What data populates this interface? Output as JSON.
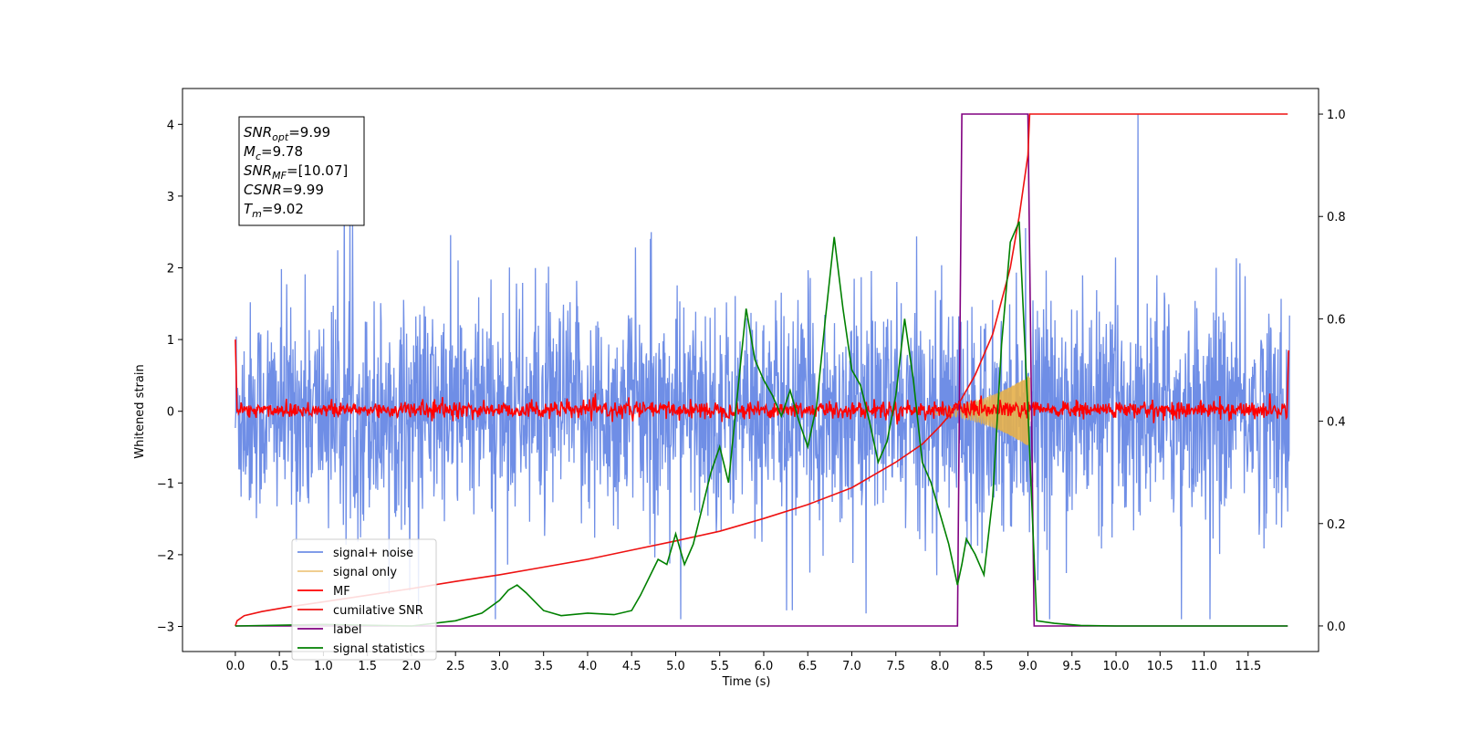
{
  "chart_data": {
    "type": "line",
    "xlabel": "Time (s)",
    "ylabel": "Whitened strain",
    "xlim": [
      -0.6,
      12.3
    ],
    "ylim": [
      -3.35,
      4.5
    ],
    "y2lim": [
      -0.05,
      1.05
    ],
    "x_ticks": [
      "0.0",
      "0.5",
      "1.0",
      "1.5",
      "2.0",
      "2.5",
      "3.0",
      "3.5",
      "4.0",
      "4.5",
      "5.0",
      "5.5",
      "6.0",
      "6.5",
      "7.0",
      "7.5",
      "8.0",
      "8.5",
      "9.0",
      "9.5",
      "10.0",
      "10.5",
      "11.0",
      "11.5"
    ],
    "y_ticks": [
      "4",
      "3",
      "2",
      "1",
      "0",
      "−1",
      "−2",
      "−3"
    ],
    "y2_ticks": [
      "1.0",
      "0.8",
      "0.6",
      "0.4",
      "0.2",
      "0.0"
    ],
    "colors": {
      "signal_noise": "#6f8ee6",
      "signal_only": "#e6b04a",
      "mf": "#ff0000",
      "cumulative_snr": "#ee1111",
      "label": "#800080",
      "signal_statistics": "#008000"
    },
    "info_box": [
      {
        "base": "SNR",
        "sub": "opt",
        "rest": "=9.99"
      },
      {
        "base": "M",
        "sub": "c",
        "rest": "=9.78"
      },
      {
        "base": "SNR",
        "sub": "MF",
        "rest": "=[10.07]"
      },
      {
        "base": "CSNR",
        "sub": "",
        "rest": "=9.99"
      },
      {
        "base": "T",
        "sub": "m",
        "rest": "=9.02"
      }
    ],
    "legend": [
      "signal+ noise",
      "signal only",
      "MF",
      "cumilative SNR",
      "label",
      "signal statistics"
    ],
    "series": [
      {
        "name": "label",
        "axis": "right",
        "x": [
          0.0,
          8.2,
          8.25,
          9.0,
          9.07,
          11.95
        ],
        "y": [
          0.0,
          0.0,
          1.0,
          1.0,
          0.0,
          0.0
        ]
      },
      {
        "name": "cumilative SNR",
        "axis": "right",
        "x": [
          0.0,
          0.02,
          0.1,
          0.3,
          0.6,
          1.0,
          1.5,
          2.0,
          2.5,
          3.0,
          3.5,
          4.0,
          4.5,
          5.0,
          5.5,
          6.0,
          6.5,
          7.0,
          7.5,
          7.8,
          8.0,
          8.2,
          8.4,
          8.6,
          8.8,
          8.9,
          9.0,
          9.02,
          11.95
        ],
        "y": [
          0.0,
          0.01,
          0.02,
          0.028,
          0.037,
          0.047,
          0.06,
          0.073,
          0.087,
          0.1,
          0.115,
          0.13,
          0.148,
          0.166,
          0.185,
          0.21,
          0.237,
          0.27,
          0.32,
          0.355,
          0.39,
          0.43,
          0.49,
          0.57,
          0.7,
          0.8,
          0.92,
          1.0,
          1.0
        ]
      },
      {
        "name": "signal statistics",
        "axis": "right",
        "x": [
          0.0,
          1.0,
          2.0,
          2.5,
          2.8,
          3.0,
          3.1,
          3.2,
          3.3,
          3.5,
          3.7,
          4.0,
          4.3,
          4.5,
          4.6,
          4.8,
          4.9,
          5.0,
          5.1,
          5.2,
          5.4,
          5.5,
          5.6,
          5.7,
          5.8,
          5.9,
          6.0,
          6.1,
          6.2,
          6.3,
          6.4,
          6.5,
          6.6,
          6.7,
          6.8,
          6.9,
          7.0,
          7.1,
          7.2,
          7.3,
          7.4,
          7.5,
          7.6,
          7.7,
          7.8,
          7.9,
          8.0,
          8.1,
          8.2,
          8.25,
          8.3,
          8.4,
          8.5,
          8.6,
          8.7,
          8.8,
          8.9,
          9.0,
          9.1,
          9.3,
          9.6,
          10.0,
          11.95
        ],
        "y": [
          0.0,
          0.003,
          0.0,
          0.01,
          0.025,
          0.05,
          0.07,
          0.08,
          0.065,
          0.03,
          0.02,
          0.025,
          0.022,
          0.03,
          0.06,
          0.13,
          0.12,
          0.18,
          0.12,
          0.16,
          0.3,
          0.35,
          0.28,
          0.45,
          0.62,
          0.52,
          0.48,
          0.45,
          0.41,
          0.46,
          0.4,
          0.35,
          0.43,
          0.6,
          0.76,
          0.62,
          0.5,
          0.47,
          0.4,
          0.32,
          0.36,
          0.45,
          0.6,
          0.48,
          0.32,
          0.28,
          0.22,
          0.16,
          0.08,
          0.12,
          0.17,
          0.14,
          0.1,
          0.25,
          0.55,
          0.75,
          0.79,
          0.42,
          0.01,
          0.005,
          0.001,
          0.0,
          0.0
        ]
      }
    ]
  }
}
